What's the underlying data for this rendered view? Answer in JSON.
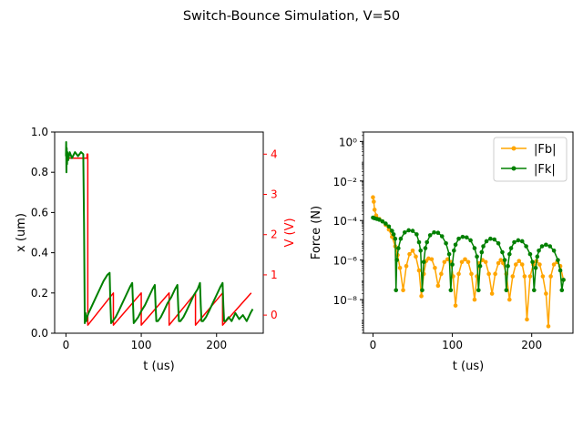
{
  "figure": {
    "title": "Switch-Bounce Simulation, V=50"
  },
  "colors": {
    "x_series": "#008000",
    "v_series": "#ff0000",
    "fb_series": "#ffa500",
    "fk_series": "#008000",
    "axis": "#000000"
  },
  "chart_data": [
    {
      "type": "line",
      "title": "",
      "xlabel": "t (us)",
      "ylabel": "x (um)",
      "y2label": "V (V)",
      "xlim": [
        -15,
        262
      ],
      "ylim": [
        0,
        1.0
      ],
      "y2lim": [
        -0.45,
        4.55
      ],
      "xticks": [
        0,
        100,
        200
      ],
      "yticks": [
        0.0,
        0.2,
        0.4,
        0.6,
        0.8,
        1.0
      ],
      "y2ticks": [
        0,
        1,
        2,
        3,
        4
      ],
      "grid": false,
      "series": [
        {
          "name": "x",
          "axis": "left",
          "x": [
            0,
            0.3,
            0.6,
            1,
            1.5,
            2,
            3,
            5,
            8,
            12,
            16,
            20,
            23,
            24,
            25,
            26,
            27,
            28,
            30,
            35,
            40,
            45,
            50,
            55,
            58,
            59,
            60,
            62,
            66,
            70,
            75,
            80,
            85,
            88,
            89,
            90,
            92,
            96,
            100,
            105,
            110,
            115,
            118,
            119,
            120,
            122,
            126,
            130,
            135,
            140,
            145,
            148,
            149,
            150,
            152,
            156,
            160,
            165,
            170,
            175,
            178,
            179,
            180,
            182,
            186,
            190,
            195,
            200,
            205,
            208,
            209,
            210,
            212,
            216,
            220,
            225,
            230,
            235,
            240,
            245,
            248
          ],
          "values": [
            0.88,
            0.95,
            0.8,
            0.92,
            0.84,
            0.9,
            0.86,
            0.9,
            0.87,
            0.9,
            0.88,
            0.9,
            0.89,
            0.55,
            0.05,
            0.1,
            0.06,
            0.08,
            0.1,
            0.14,
            0.18,
            0.22,
            0.26,
            0.29,
            0.3,
            0.15,
            0.05,
            0.06,
            0.08,
            0.11,
            0.15,
            0.19,
            0.23,
            0.25,
            0.15,
            0.05,
            0.06,
            0.08,
            0.11,
            0.14,
            0.18,
            0.22,
            0.24,
            0.14,
            0.06,
            0.06,
            0.08,
            0.11,
            0.15,
            0.18,
            0.22,
            0.24,
            0.14,
            0.06,
            0.06,
            0.08,
            0.11,
            0.15,
            0.19,
            0.22,
            0.25,
            0.14,
            0.06,
            0.06,
            0.08,
            0.11,
            0.15,
            0.19,
            0.23,
            0.25,
            0.14,
            0.06,
            0.06,
            0.08,
            0.06,
            0.1,
            0.07,
            0.09,
            0.06,
            0.1,
            0.12
          ]
        },
        {
          "name": "V",
          "axis": "right",
          "x": [
            0,
            1,
            1,
            28,
            28,
            29,
            29,
            63,
            63,
            100,
            100,
            137,
            137,
            172,
            172,
            208,
            208,
            246
          ],
          "values": [
            4.0,
            4.0,
            3.9,
            3.9,
            4.0,
            4.0,
            -0.25,
            0.55,
            -0.25,
            0.55,
            -0.25,
            0.55,
            -0.25,
            0.55,
            -0.25,
            0.55,
            -0.25,
            0.55
          ]
        }
      ]
    },
    {
      "type": "line",
      "title": "",
      "xlabel": "t (us)",
      "ylabel": "Force (N)",
      "xscale": "linear",
      "yscale": "log",
      "xlim": [
        -12,
        252
      ],
      "ylim": [
        2e-10,
        3.0
      ],
      "xticks": [
        0,
        100,
        200
      ],
      "yticks": [
        1e-08,
        1e-06,
        0.0001,
        0.01,
        1
      ],
      "ytick_labels": [
        "10⁻⁸",
        "10⁻⁶",
        "10⁻⁴",
        "10⁻²",
        "10⁰"
      ],
      "legend_position": "top-right",
      "grid": false,
      "series": [
        {
          "name": "|Fb|",
          "x": [
            0,
            1,
            2,
            4,
            8,
            12,
            16,
            20,
            24,
            28,
            31,
            34,
            38,
            42,
            46,
            50,
            54,
            58,
            61,
            64,
            67,
            70,
            74,
            78,
            82,
            86,
            90,
            94,
            98,
            101,
            104,
            108,
            112,
            116,
            120,
            124,
            128,
            131,
            134,
            138,
            142,
            146,
            150,
            154,
            158,
            161,
            164,
            168,
            172,
            176,
            180,
            184,
            188,
            191,
            194,
            198,
            202,
            206,
            210,
            214,
            218,
            221,
            224,
            228,
            232,
            236,
            240
          ],
          "values": [
            0.0015,
            0.0009,
            0.00035,
            0.00018,
            0.00012,
            9e-05,
            6e-05,
            3.5e-05,
            1.5e-05,
            5e-06,
            1.8e-06,
            4e-07,
            3e-08,
            5e-07,
            2e-06,
            3e-06,
            1.5e-06,
            3e-07,
            1.5e-08,
            2e-07,
            9e-07,
            1.2e-06,
            1.1e-06,
            4e-07,
            5e-08,
            2e-07,
            8e-07,
            1.1e-06,
            8e-07,
            1.5e-07,
            5e-09,
            2e-07,
            8e-07,
            1.1e-06,
            8e-07,
            2e-07,
            1e-08,
            1.5e-07,
            7e-07,
            1e-06,
            8e-07,
            2e-07,
            2e-08,
            2e-07,
            7e-07,
            1e-06,
            7e-07,
            2e-07,
            1e-08,
            1.5e-07,
            6e-07,
            9e-07,
            6e-07,
            1.5e-07,
            1e-09,
            1.5e-07,
            6e-07,
            9e-07,
            6e-07,
            1.5e-07,
            2e-08,
            4.5e-10,
            1.5e-07,
            6e-07,
            8e-07,
            5e-07,
            1e-07
          ]
        },
        {
          "name": "|Fk|",
          "x": [
            0,
            2,
            5,
            8,
            12,
            16,
            20,
            24,
            26,
            28,
            29,
            30,
            32,
            35,
            40,
            45,
            50,
            55,
            58,
            60,
            62,
            64,
            66,
            68,
            72,
            77,
            82,
            87,
            92,
            96,
            98,
            100,
            102,
            104,
            108,
            113,
            118,
            123,
            128,
            131,
            133,
            135,
            137,
            139,
            143,
            148,
            153,
            158,
            163,
            166,
            168,
            170,
            172,
            174,
            178,
            183,
            188,
            193,
            198,
            201,
            203,
            205,
            207,
            209,
            213,
            218,
            223,
            228,
            233,
            236,
            238,
            240
          ],
          "values": [
            0.00014,
            0.00013,
            0.00012,
            0.00011,
            9e-05,
            7e-05,
            5e-05,
            3e-05,
            2e-05,
            1.2e-05,
            3e-08,
            1e-06,
            4e-06,
            1.2e-05,
            2.5e-05,
            3.2e-05,
            3e-05,
            2e-05,
            8e-06,
            3e-06,
            3e-08,
            8e-07,
            4e-06,
            8e-06,
            1.8e-05,
            2.5e-05,
            2.4e-05,
            1.6e-05,
            7e-06,
            2e-06,
            3e-08,
            6e-07,
            3e-06,
            6e-06,
            1.2e-05,
            1.5e-05,
            1.4e-05,
            1e-05,
            4e-06,
            1.5e-06,
            3e-08,
            5e-07,
            2.5e-06,
            5e-06,
            9e-06,
            1.2e-05,
            1.1e-05,
            7e-06,
            2.5e-06,
            1e-06,
            3e-08,
            5e-07,
            2e-06,
            4e-06,
            8e-06,
            1e-05,
            9e-06,
            5e-06,
            2e-06,
            8e-07,
            3e-08,
            4e-07,
            1.5e-06,
            3e-06,
            5e-06,
            6e-06,
            5e-06,
            3e-06,
            1e-06,
            3e-07,
            3e-08,
            1e-07
          ]
        }
      ]
    }
  ]
}
